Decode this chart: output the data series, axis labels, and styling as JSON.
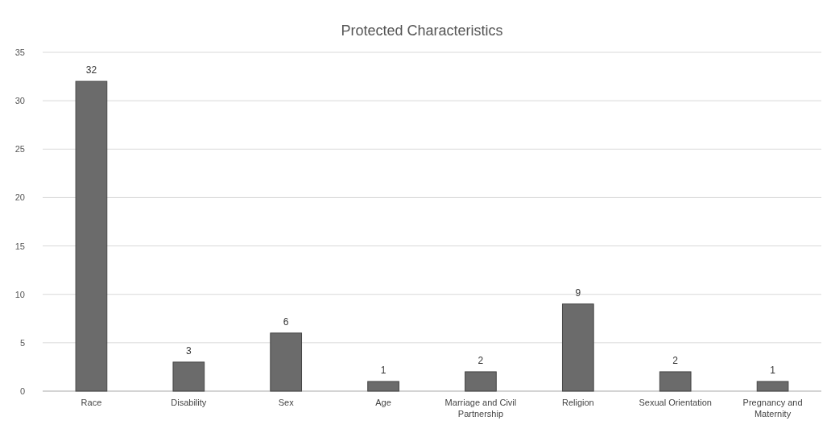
{
  "chart_data": {
    "type": "bar",
    "title": "Protected Characteristics",
    "categories": [
      "Race",
      "Disability",
      "Sex",
      "Age",
      "Marriage and Civil Partnership",
      "Religion",
      "Sexual Orientation",
      "Pregnancy and Maternity"
    ],
    "values": [
      32,
      3,
      6,
      1,
      2,
      9,
      2,
      1
    ],
    "color": "#6b6b6b",
    "ylim": [
      0,
      35
    ],
    "yticks": [
      0,
      5,
      10,
      15,
      20,
      25,
      30,
      35
    ],
    "grid": "y",
    "data_labels": true
  }
}
